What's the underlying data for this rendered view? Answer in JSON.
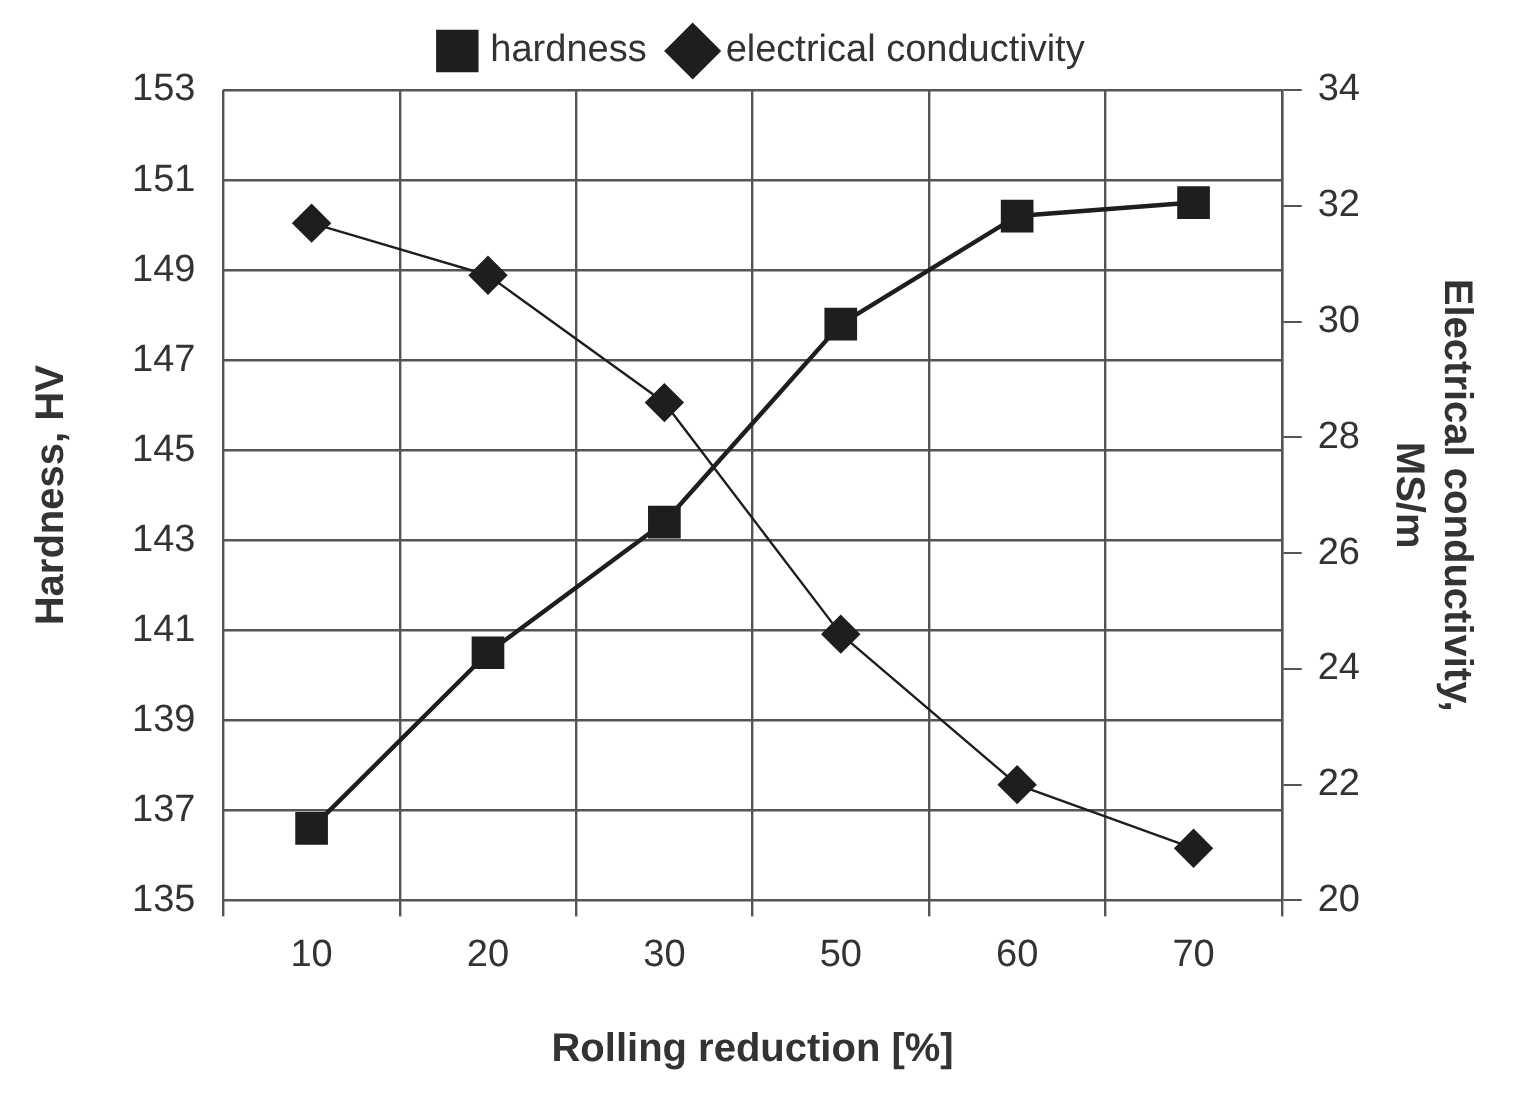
{
  "chart_data": {
    "type": "line",
    "xlabel": "Rolling reduction [%]",
    "ylabel": "Hardness, HV",
    "y2label": "Electrical conductivity, MS/m",
    "categories": [
      "10",
      "20",
      "30",
      "50",
      "60",
      "70"
    ],
    "series": [
      {
        "name": "hardness",
        "color": "#1e1e1e",
        "marker": "square",
        "values": [
          136.6,
          140.5,
          143.4,
          147.8,
          150.2,
          150.5
        ]
      },
      {
        "name": "electrical conductivity",
        "color": "#1e1e1e",
        "marker": "diamond",
        "axis": "y2",
        "values": [
          31.7,
          30.8,
          28.6,
          24.6,
          22.0,
          20.9
        ]
      }
    ],
    "ylim": [
      135,
      153
    ],
    "yticks": [
      135,
      137,
      139,
      141,
      143,
      145,
      147,
      149,
      151,
      153
    ],
    "y2lim": [
      20,
      34
    ],
    "y2ticks": [
      20,
      22,
      24,
      26,
      28,
      30,
      32,
      34
    ],
    "grid": true,
    "legend": "top",
    "line_style": "solid"
  }
}
